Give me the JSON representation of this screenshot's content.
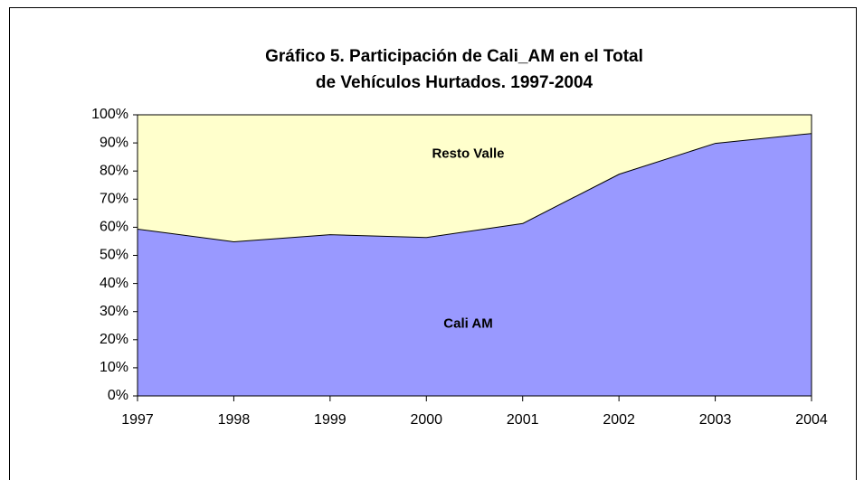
{
  "chart_data": {
    "type": "stacked_area",
    "title": [
      "Gráfico 5. Participación de Cali_AM en el Total",
      "de Vehículos Hurtados. 1997-2004"
    ],
    "categories": [
      "1997",
      "1998",
      "1999",
      "2000",
      "2001",
      "2002",
      "2003",
      "2004"
    ],
    "series": [
      {
        "name": "Cali AM",
        "color": "#9999ff",
        "values": [
          59.5,
          55,
          57.5,
          56.5,
          61.5,
          79,
          90,
          93.5
        ]
      },
      {
        "name": "Resto Valle",
        "color": "#ffffcc",
        "values": [
          40.5,
          45,
          42.5,
          43.5,
          38.5,
          21,
          10,
          6.5
        ]
      }
    ],
    "ylim": [
      0,
      100
    ],
    "yticks": [
      {
        "value": 0,
        "label": "0%"
      },
      {
        "value": 10,
        "label": "10%"
      },
      {
        "value": 20,
        "label": "20%"
      },
      {
        "value": 30,
        "label": "30%"
      },
      {
        "value": 40,
        "label": "40%"
      },
      {
        "value": 50,
        "label": "50%"
      },
      {
        "value": 60,
        "label": "60%"
      },
      {
        "value": 70,
        "label": "70%"
      },
      {
        "value": 80,
        "label": "80%"
      },
      {
        "value": 90,
        "label": "90%"
      },
      {
        "value": 100,
        "label": "100%"
      }
    ]
  }
}
